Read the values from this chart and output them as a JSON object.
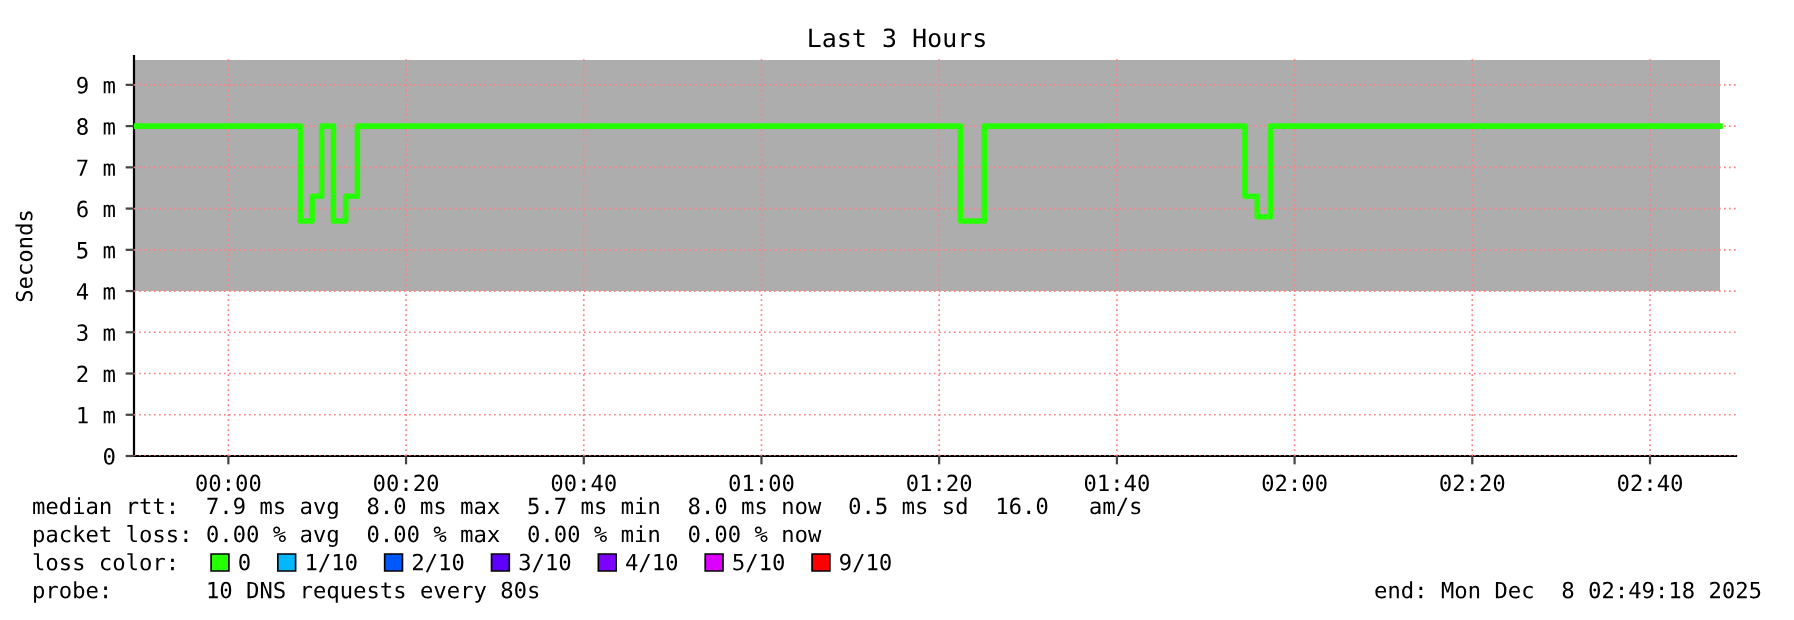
{
  "chart_data": {
    "type": "step",
    "title": "Last 3 Hours",
    "ylabel": "Seconds",
    "x": [
      -0.176,
      0.135,
      0.157,
      0.175,
      0.197,
      0.22,
      0.242,
      1.373,
      1.396,
      1.418,
      1.907,
      1.93,
      1.955,
      2.798
    ],
    "series": [
      {
        "name": "0",
        "color": "#26ff00",
        "values": [
          8.0,
          5.7,
          6.3,
          8.0,
          5.7,
          6.3,
          8.0,
          5.7,
          5.7,
          8.0,
          6.3,
          5.8,
          8.0,
          8.0
        ],
        "lower": [
          4.0,
          4.0,
          4.0,
          4.0,
          4.0,
          4.0,
          4.0,
          4.0,
          4.0,
          4.0,
          4.0,
          4.0,
          4.0,
          4.0
        ],
        "upper": [
          9.6,
          9.6,
          9.6,
          9.6,
          9.6,
          9.6,
          9.6,
          9.6,
          9.6,
          9.6,
          9.6,
          9.6,
          9.6,
          9.6
        ]
      },
      {
        "name": "1/10",
        "color": "#00b8ff",
        "values": [
          null,
          null,
          null,
          null,
          null,
          null,
          null,
          null,
          null,
          null,
          null,
          null,
          null,
          null
        ]
      },
      {
        "name": "2/10",
        "color": "#0059ff",
        "values": [
          null,
          null,
          null,
          null,
          null,
          null,
          null,
          null,
          null,
          null,
          null,
          null,
          null,
          null
        ]
      },
      {
        "name": "3/10",
        "color": "#5e00ff",
        "values": [
          null,
          null,
          null,
          null,
          null,
          null,
          null,
          null,
          null,
          null,
          null,
          null,
          null,
          null
        ]
      },
      {
        "name": "4/10",
        "color": "#7e00ff",
        "values": [
          null,
          null,
          null,
          null,
          null,
          null,
          null,
          null,
          null,
          null,
          null,
          null,
          null,
          null
        ]
      },
      {
        "name": "5/10",
        "color": "#dd00ff",
        "values": [
          null,
          null,
          null,
          null,
          null,
          null,
          null,
          null,
          null,
          null,
          null,
          null,
          null,
          null
        ]
      },
      {
        "name": "9/10",
        "color": "#ff0000",
        "values": [
          null,
          null,
          null,
          null,
          null,
          null,
          null,
          null,
          null,
          null,
          null,
          null,
          null,
          null
        ]
      }
    ],
    "xlim": [
      -0.177,
      2.828
    ],
    "xticks": [
      {
        "value": 0,
        "label": "00:00"
      },
      {
        "value": 0.3333,
        "label": "00:20"
      },
      {
        "value": 0.6667,
        "label": "00:40"
      },
      {
        "value": 1,
        "label": "01:00"
      },
      {
        "value": 1.3333,
        "label": "01:20"
      },
      {
        "value": 1.6667,
        "label": "01:40"
      },
      {
        "value": 2,
        "label": "02:00"
      },
      {
        "value": 2.3333,
        "label": "02:20"
      },
      {
        "value": 2.6667,
        "label": "02:40"
      }
    ],
    "ylim": [
      0,
      9.7
    ],
    "yticks": [
      0,
      {
        "value": 1,
        "label": "1 m"
      },
      {
        "value": 2,
        "label": "2 m"
      },
      {
        "value": 3,
        "label": "3 m"
      },
      {
        "value": 4,
        "label": "4 m"
      },
      {
        "value": 5,
        "label": "5 m"
      },
      {
        "value": 6,
        "label": "6 m"
      },
      {
        "value": 7,
        "label": "7 m"
      },
      {
        "value": 8,
        "label": "8 m"
      },
      {
        "value": 9,
        "label": "9 m"
      }
    ],
    "grid": true,
    "legend": "bottom",
    "legend_title": "loss color:",
    "marker": "none",
    "line_style": "solid",
    "annotations": [
      "median rtt:  7.9 ms avg  8.0 ms max  5.7 ms min  8.0 ms now  0.5 ms sd  16.0   am/s",
      "packet loss: 0.00 % avg  0.00 % max  0.00 % min  0.00 % now",
      "probe:       10 DNS requests every 80s",
      "end: Mon Dec  8 02:49:18 2025"
    ]
  }
}
